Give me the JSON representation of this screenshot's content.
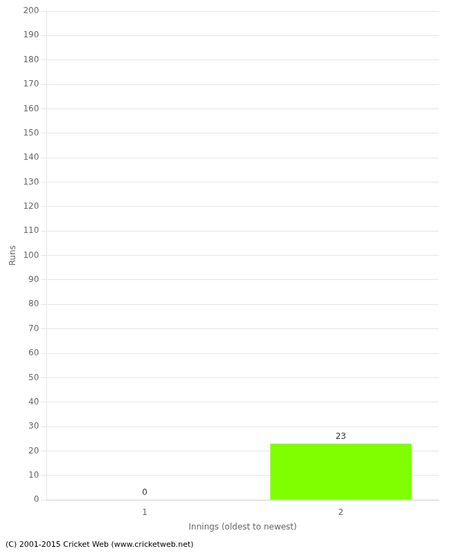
{
  "chart_data": {
    "type": "bar",
    "categories": [
      "1",
      "2"
    ],
    "values": [
      0,
      23
    ],
    "colors": [
      "#ffffff",
      "#7fff00"
    ],
    "xlabel": "Innings (oldest to newest)",
    "ylabel": "Runs",
    "ylim": [
      0,
      200
    ],
    "yticks": [
      0,
      10,
      20,
      30,
      40,
      50,
      60,
      70,
      80,
      90,
      100,
      110,
      120,
      130,
      140,
      150,
      160,
      170,
      180,
      190,
      200
    ],
    "grid": true,
    "data_labels": true,
    "annotations": [
      "(C) 2001-2015 Cricket Web (www.cricketweb.net)"
    ]
  }
}
